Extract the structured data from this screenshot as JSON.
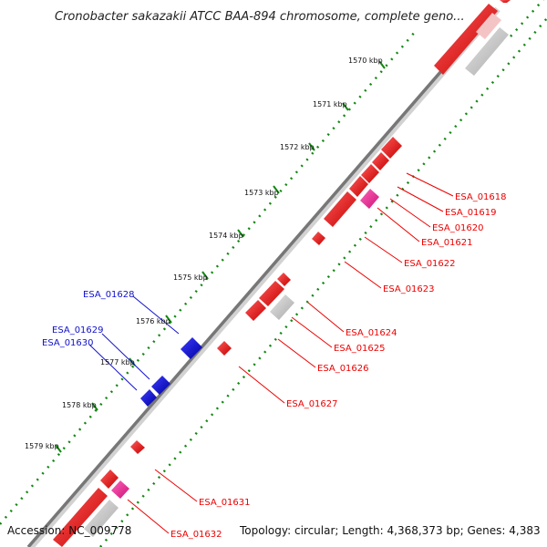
{
  "title": "Cronobacter sakazakii ATCC BAA-894 chromosome, complete geno...",
  "footer": {
    "accession": "Accession: NC_009778",
    "topology": "Topology: circular; Length: 4,368,373 bp; Genes: 4,383"
  },
  "colors": {
    "forward": "#ee0000",
    "reverse": "#1111cc",
    "pseudo": "#c8c8c8",
    "rna": "#ee3399",
    "backbone": "#777777",
    "ticks": "#118811"
  },
  "ruler": [
    "1570 kbp",
    "1571 kbp",
    "1572 kbp",
    "1573 kbp",
    "1574 kbp",
    "1575 kbp",
    "1576 kbp",
    "1577 kbp",
    "1578 kbp",
    "1579 kbp"
  ],
  "genes_right": [
    "ESA_01618",
    "ESA_01619",
    "ESA_01620",
    "ESA_01621",
    "ESA_01622",
    "ESA_01623",
    "ESA_01624",
    "ESA_01625",
    "ESA_01626",
    "ESA_01627",
    "ESA_01631",
    "ESA_01632"
  ],
  "genes_left": [
    "ESA_01628",
    "ESA_01629",
    "ESA_01630"
  ]
}
